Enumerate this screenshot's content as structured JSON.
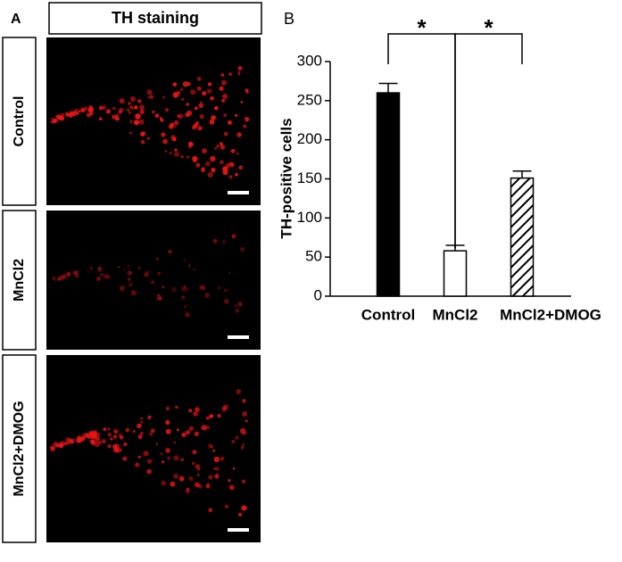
{
  "panel_a": {
    "label": "A",
    "title": "TH staining",
    "rows": [
      "Control",
      "MnCl2",
      "MnCl2+DMOG"
    ]
  },
  "chart_data": {
    "type": "bar",
    "label": "B",
    "ylabel": "TH-positive  cells",
    "categories": [
      "Control",
      "MnCl2",
      "MnCl2+DMOG"
    ],
    "values": [
      260,
      58,
      151
    ],
    "errors": [
      12,
      7,
      9
    ],
    "colors": [
      "#000000",
      "#ffffff",
      "#ffffff"
    ],
    "hatch": [
      false,
      false,
      true
    ],
    "ylim": [
      0,
      300
    ],
    "yticks": [
      0,
      50,
      100,
      150,
      200,
      250,
      300
    ],
    "annotations": [
      "*",
      "*"
    ]
  }
}
